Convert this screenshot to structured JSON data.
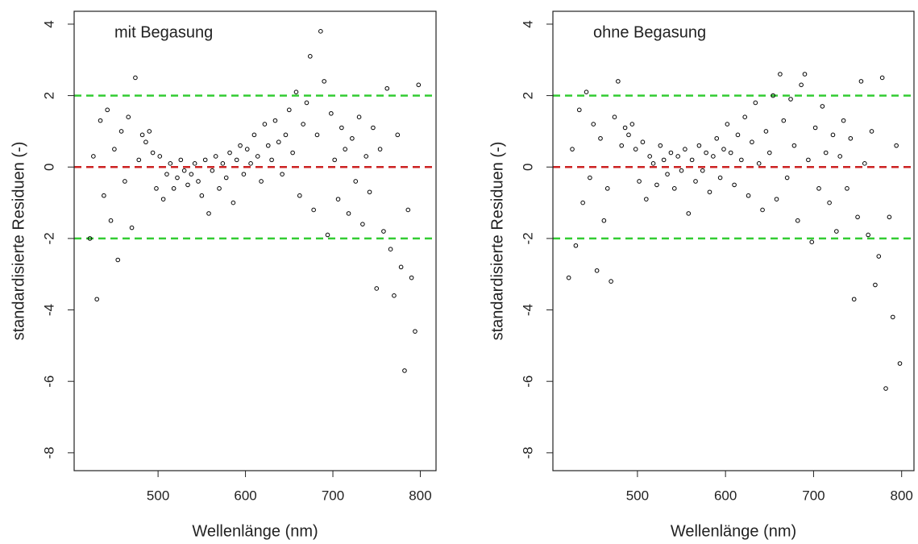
{
  "chart_data": [
    {
      "type": "scatter",
      "annotation": "mit Begasung",
      "x_label": "Wellenlänge (nm)",
      "y_label": "standardisierte Residuen  (-)",
      "xlim": [
        404,
        818
      ],
      "ylim": [
        -8.5,
        4.36
      ],
      "xticks": [
        500,
        600,
        700,
        800
      ],
      "yticks": [
        -8,
        -6,
        -4,
        -2,
        0,
        2,
        4
      ],
      "color": "#000000",
      "hlines": [
        {
          "value": 2,
          "color": "#33cc33"
        },
        {
          "value": 0,
          "color": "#cc2222"
        },
        {
          "value": -2,
          "color": "#33cc33"
        }
      ],
      "x": [
        422,
        426,
        430,
        434,
        438,
        442,
        446,
        450,
        454,
        458,
        462,
        466,
        470,
        474,
        478,
        482,
        486,
        490,
        494,
        498,
        502,
        506,
        510,
        514,
        518,
        522,
        526,
        530,
        534,
        538,
        542,
        546,
        550,
        554,
        558,
        562,
        566,
        570,
        574,
        578,
        582,
        586,
        590,
        594,
        598,
        602,
        606,
        610,
        614,
        618,
        622,
        626,
        630,
        634,
        638,
        642,
        646,
        650,
        654,
        658,
        662,
        666,
        670,
        674,
        678,
        682,
        686,
        690,
        694,
        698,
        702,
        706,
        710,
        714,
        718,
        722,
        726,
        730,
        734,
        738,
        742,
        746,
        750,
        754,
        758,
        762,
        766,
        770,
        774,
        778,
        782,
        786,
        790,
        794,
        798
      ],
      "values": [
        -2.0,
        0.3,
        -3.7,
        1.3,
        -0.8,
        1.6,
        -1.5,
        0.5,
        -2.6,
        1.0,
        -0.4,
        1.4,
        -1.7,
        2.5,
        0.2,
        0.9,
        0.7,
        1.0,
        0.4,
        -0.6,
        0.3,
        -0.9,
        -0.2,
        0.1,
        -0.6,
        -0.3,
        0.2,
        -0.1,
        -0.5,
        -0.2,
        0.1,
        -0.4,
        -0.8,
        0.2,
        -1.3,
        -0.1,
        0.3,
        -0.6,
        0.1,
        -0.3,
        0.4,
        -1.0,
        0.2,
        0.6,
        -0.2,
        0.5,
        0.1,
        0.9,
        0.3,
        -0.4,
        1.2,
        0.6,
        0.2,
        1.3,
        0.7,
        -0.2,
        0.9,
        1.6,
        0.4,
        2.1,
        -0.8,
        1.2,
        1.8,
        3.1,
        -1.2,
        0.9,
        3.8,
        2.4,
        -1.9,
        1.5,
        0.2,
        -0.9,
        1.1,
        0.5,
        -1.3,
        0.8,
        -0.4,
        1.4,
        -1.6,
        0.3,
        -0.7,
        1.1,
        -3.4,
        0.5,
        -1.8,
        2.2,
        -2.3,
        -3.6,
        0.9,
        -2.8,
        -5.7,
        -1.2,
        -3.1,
        -4.6,
        2.3
      ]
    },
    {
      "type": "scatter",
      "annotation": "ohne Begasung",
      "x_label": "Wellenlänge (nm)",
      "y_label": "standardisierte Residuen  (-)",
      "xlim": [
        404,
        814
      ],
      "ylim": [
        -8.5,
        4.36
      ],
      "xticks": [
        500,
        600,
        700,
        800
      ],
      "yticks": [
        -8,
        -6,
        -4,
        -2,
        0,
        2,
        4
      ],
      "color": "#000000",
      "hlines": [
        {
          "value": 2,
          "color": "#33cc33"
        },
        {
          "value": 0,
          "color": "#cc2222"
        },
        {
          "value": -2,
          "color": "#33cc33"
        }
      ],
      "x": [
        422,
        426,
        430,
        434,
        438,
        442,
        446,
        450,
        454,
        458,
        462,
        466,
        470,
        474,
        478,
        482,
        486,
        490,
        494,
        498,
        502,
        506,
        510,
        514,
        518,
        522,
        526,
        530,
        534,
        538,
        542,
        546,
        550,
        554,
        558,
        562,
        566,
        570,
        574,
        578,
        582,
        586,
        590,
        594,
        598,
        602,
        606,
        610,
        614,
        618,
        622,
        626,
        630,
        634,
        638,
        642,
        646,
        650,
        654,
        658,
        662,
        666,
        670,
        674,
        678,
        682,
        686,
        690,
        694,
        698,
        702,
        706,
        710,
        714,
        718,
        722,
        726,
        730,
        734,
        738,
        742,
        746,
        750,
        754,
        758,
        762,
        766,
        770,
        774,
        778,
        782,
        786,
        790,
        794,
        798
      ],
      "values": [
        -3.1,
        0.5,
        -2.2,
        1.6,
        -1.0,
        2.1,
        -0.3,
        1.2,
        -2.9,
        0.8,
        -1.5,
        -0.6,
        -3.2,
        1.4,
        2.4,
        0.6,
        1.1,
        0.9,
        1.2,
        0.5,
        -0.4,
        0.7,
        -0.9,
        0.3,
        0.1,
        -0.5,
        0.6,
        0.2,
        -0.2,
        0.4,
        -0.6,
        0.3,
        -0.1,
        0.5,
        -1.3,
        0.2,
        -0.4,
        0.6,
        -0.1,
        0.4,
        -0.7,
        0.3,
        0.8,
        -0.3,
        0.5,
        1.2,
        0.4,
        -0.5,
        0.9,
        0.2,
        1.4,
        -0.8,
        0.7,
        1.8,
        0.1,
        -1.2,
        1.0,
        0.4,
        2.0,
        -0.9,
        2.6,
        1.3,
        -0.3,
        1.9,
        0.6,
        -1.5,
        2.3,
        2.6,
        0.2,
        -2.1,
        1.1,
        -0.6,
        1.7,
        0.4,
        -1.0,
        0.9,
        -1.8,
        0.3,
        1.3,
        -0.6,
        0.8,
        -3.7,
        -1.4,
        2.4,
        0.1,
        -1.9,
        1.0,
        -3.3,
        -2.5,
        2.5,
        -6.2,
        -1.4,
        -4.2,
        0.6,
        -5.5
      ]
    }
  ]
}
